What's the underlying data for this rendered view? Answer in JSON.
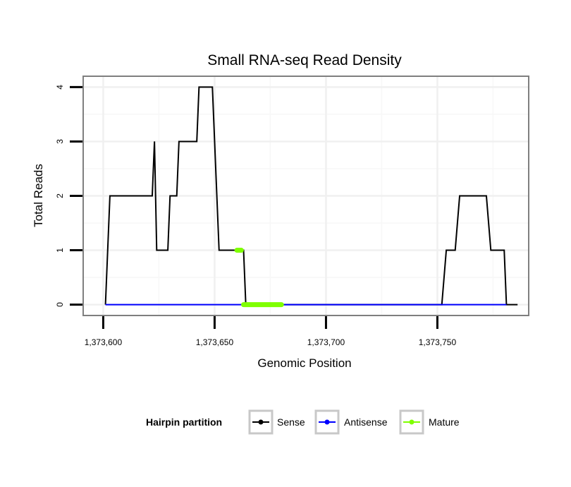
{
  "chart_data": {
    "type": "line",
    "title": "Small RNA-seq Read Density",
    "xlabel": "Genomic Position",
    "ylabel": "Total Reads",
    "xlim": [
      1373591,
      1373791
    ],
    "ylim": [
      -0.2,
      4.2
    ],
    "x_ticks": [
      1373600,
      1373650,
      1373700,
      1373750
    ],
    "x_tick_labels": [
      "1,373,600",
      "1,373,650",
      "1,373,700",
      "1,373,750"
    ],
    "y_ticks": [
      0,
      1,
      2,
      3,
      4
    ],
    "y_tick_labels": [
      "0",
      "1",
      "2",
      "3",
      "4"
    ],
    "grid": true,
    "legend": {
      "title": "Hairpin partition",
      "position": "bottom",
      "entries": [
        "Sense",
        "Antisense",
        "Mature"
      ]
    },
    "series": [
      {
        "name": "Sense",
        "color": "#000000",
        "x": [
          1373601,
          1373603,
          1373622,
          1373623,
          1373624,
          1373629,
          1373630,
          1373633,
          1373634,
          1373642,
          1373643,
          1373649,
          1373650,
          1373652,
          1373660,
          1373663,
          1373664,
          1373752,
          1373754,
          1373758,
          1373760,
          1373772,
          1373774,
          1373780,
          1373781,
          1373786
        ],
        "y": [
          0,
          2,
          2,
          3,
          1,
          1,
          2,
          2,
          3,
          3,
          4,
          4,
          3,
          1,
          1,
          1,
          0,
          0,
          1,
          1,
          2,
          2,
          1,
          1,
          0,
          0
        ]
      },
      {
        "name": "Antisense",
        "color": "#0000ff",
        "x": [
          1373601,
          1373781
        ],
        "y": [
          0,
          0
        ]
      },
      {
        "name": "Mature",
        "color": "#7fff00",
        "segments": [
          {
            "x": [
              1373660,
              1373662
            ],
            "y": [
              1,
              1
            ]
          },
          {
            "x": [
              1373663,
              1373680
            ],
            "y": [
              0,
              0
            ]
          }
        ]
      }
    ]
  }
}
